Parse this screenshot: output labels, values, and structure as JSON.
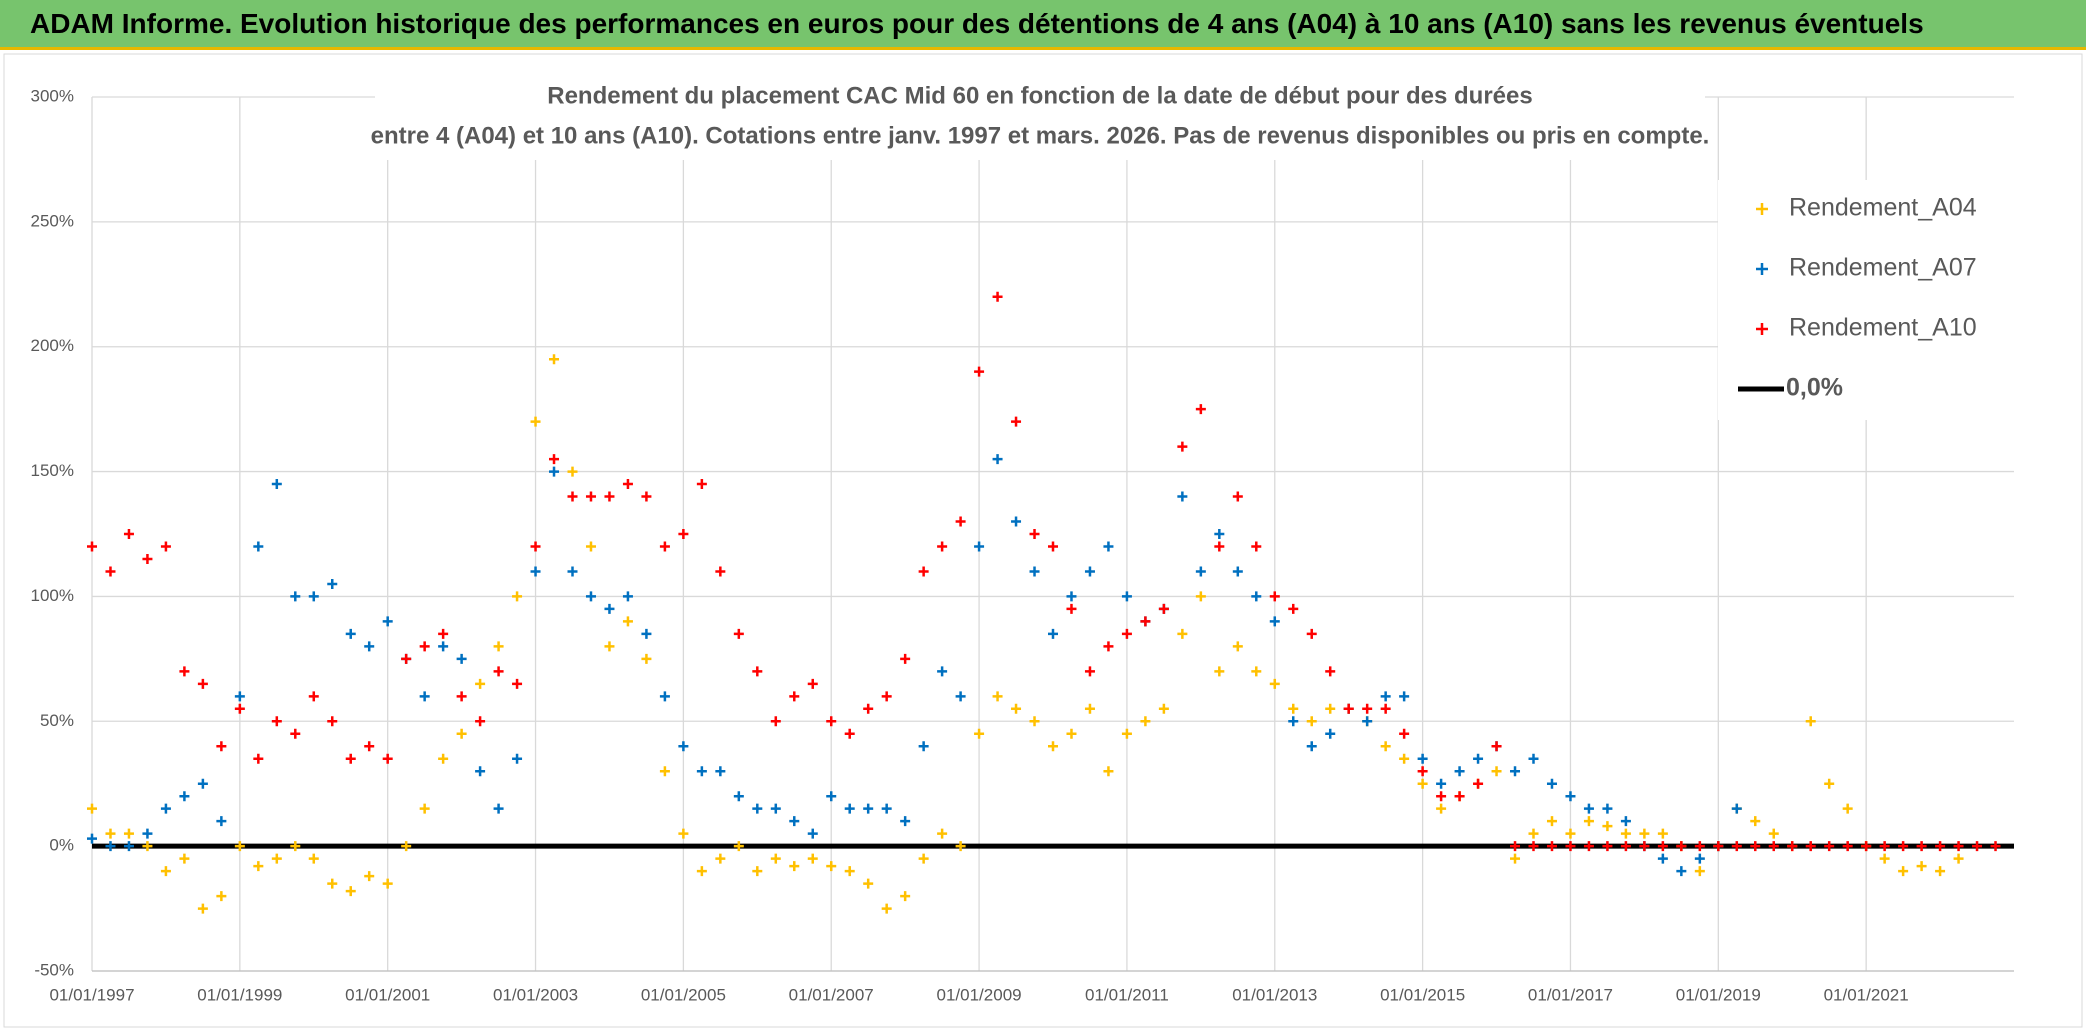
{
  "chart_data": {
    "type": "scatter",
    "title": "ADAM Informe. Evolution historique des performances en euros pour des détentions de 4 ans (A04) à 10 ans (A10) sans les revenus éventuels",
    "subtitle": [
      "Rendement du placement CAC Mid 60 en fonction de la date de début pour des durées",
      "entre 4 (A04) et 10 ans (A10). Cotations entre janv. 1997 et mars. 2026. Pas de revenus disponibles ou pris en compte."
    ],
    "xlim": [
      1997,
      2023
    ],
    "ylim": [
      -50,
      300
    ],
    "grid": true,
    "legend": "top-right",
    "xticks": [
      {
        "value": 1997,
        "label": "01/01/1997"
      },
      {
        "value": 1999,
        "label": "01/01/1999"
      },
      {
        "value": 2001,
        "label": "01/01/2001"
      },
      {
        "value": 2003,
        "label": "01/01/2003"
      },
      {
        "value": 2005,
        "label": "01/01/2005"
      },
      {
        "value": 2007,
        "label": "01/01/2007"
      },
      {
        "value": 2009,
        "label": "01/01/2009"
      },
      {
        "value": 2011,
        "label": "01/01/2011"
      },
      {
        "value": 2013,
        "label": "01/01/2013"
      },
      {
        "value": 2015,
        "label": "01/01/2015"
      },
      {
        "value": 2017,
        "label": "01/01/2017"
      },
      {
        "value": 2019,
        "label": "01/01/2019"
      },
      {
        "value": 2021,
        "label": "01/01/2021"
      }
    ],
    "yticks": [
      {
        "value": -50,
        "label": "-50%"
      },
      {
        "value": 0,
        "label": "0%"
      },
      {
        "value": 50,
        "label": "50%"
      },
      {
        "value": 100,
        "label": "100%"
      },
      {
        "value": 150,
        "label": "150%"
      },
      {
        "value": 200,
        "label": "200%"
      },
      {
        "value": 250,
        "label": "250%"
      },
      {
        "value": 300,
        "label": "300%"
      }
    ],
    "x": [
      1997,
      1997.25,
      1997.5,
      1997.75,
      1998,
      1998.25,
      1998.5,
      1998.75,
      1999,
      1999.25,
      1999.5,
      1999.75,
      2000,
      2000.25,
      2000.5,
      2000.75,
      2001,
      2001.25,
      2001.5,
      2001.75,
      2002,
      2002.25,
      2002.5,
      2002.75,
      2003,
      2003.25,
      2003.5,
      2003.75,
      2004,
      2004.25,
      2004.5,
      2004.75,
      2005,
      2005.25,
      2005.5,
      2005.75,
      2006,
      2006.25,
      2006.5,
      2006.75,
      2007,
      2007.25,
      2007.5,
      2007.75,
      2008,
      2008.25,
      2008.5,
      2008.75,
      2009,
      2009.25,
      2009.5,
      2009.75,
      2010,
      2010.25,
      2010.5,
      2010.75,
      2011,
      2011.25,
      2011.5,
      2011.75,
      2012,
      2012.25,
      2012.5,
      2012.75,
      2013,
      2013.25,
      2013.5,
      2013.75,
      2014,
      2014.25,
      2014.5,
      2014.75,
      2015,
      2015.25,
      2015.5,
      2015.75,
      2016,
      2016.25,
      2016.5,
      2016.75,
      2017,
      2017.25,
      2017.5,
      2017.75,
      2018,
      2018.25,
      2018.5,
      2018.75,
      2019,
      2019.25,
      2019.5,
      2019.75,
      2020,
      2020.25,
      2020.5,
      2020.75,
      2021,
      2021.25,
      2021.5,
      2021.75,
      2022,
      2022.25,
      2022.5,
      2022.75
    ],
    "series": [
      {
        "name": "Rendement_A04",
        "color": "#ffc000",
        "marker": "plus",
        "values": [
          15,
          5,
          5,
          0,
          -10,
          -5,
          -25,
          -20,
          0,
          -8,
          -5,
          0,
          -5,
          -15,
          -18,
          -12,
          -15,
          0,
          15,
          35,
          45,
          65,
          80,
          100,
          170,
          195,
          150,
          120,
          80,
          90,
          75,
          30,
          5,
          -10,
          -5,
          0,
          -10,
          -5,
          -8,
          -5,
          -8,
          -10,
          -15,
          -25,
          -20,
          -5,
          5,
          0,
          45,
          60,
          55,
          50,
          40,
          45,
          55,
          30,
          45,
          50,
          55,
          85,
          100,
          70,
          80,
          70,
          65,
          55,
          50,
          55,
          55,
          50,
          40,
          35,
          25,
          15,
          20,
          25,
          30,
          -5,
          5,
          10,
          5,
          10,
          8,
          5,
          5,
          5,
          0,
          -10,
          0,
          15,
          10,
          5,
          0,
          50,
          25,
          15,
          0,
          -5,
          -10,
          -8,
          -10,
          -5,
          null,
          null
        ]
      },
      {
        "name": "Rendement_A07",
        "color": "#0070c0",
        "marker": "plus",
        "values": [
          3,
          0,
          0,
          5,
          15,
          20,
          25,
          10,
          60,
          120,
          145,
          100,
          100,
          105,
          85,
          80,
          90,
          75,
          60,
          80,
          75,
          30,
          15,
          35,
          110,
          150,
          110,
          100,
          95,
          100,
          85,
          60,
          40,
          30,
          30,
          20,
          15,
          15,
          10,
          5,
          20,
          15,
          15,
          15,
          10,
          40,
          70,
          60,
          120,
          155,
          130,
          110,
          85,
          100,
          110,
          120,
          100,
          90,
          95,
          140,
          110,
          125,
          110,
          100,
          90,
          50,
          40,
          45,
          55,
          50,
          60,
          60,
          35,
          25,
          30,
          35,
          40,
          30,
          35,
          25,
          20,
          15,
          15,
          10,
          0,
          -5,
          -10,
          -5,
          0,
          15,
          null,
          null,
          null,
          null,
          null,
          null,
          null,
          null,
          null,
          null,
          null,
          null,
          null,
          null
        ]
      },
      {
        "name": "Rendement_A10",
        "color": "#ff0000",
        "marker": "plus",
        "values": [
          120,
          110,
          125,
          115,
          120,
          70,
          65,
          40,
          55,
          35,
          50,
          45,
          60,
          50,
          35,
          40,
          35,
          75,
          80,
          85,
          60,
          50,
          70,
          65,
          120,
          155,
          140,
          140,
          140,
          145,
          140,
          120,
          125,
          145,
          110,
          85,
          70,
          50,
          60,
          65,
          50,
          45,
          55,
          60,
          75,
          110,
          120,
          130,
          190,
          220,
          170,
          125,
          120,
          95,
          70,
          80,
          85,
          90,
          95,
          160,
          175,
          120,
          140,
          120,
          100,
          95,
          85,
          70,
          55,
          55,
          55,
          45,
          30,
          20,
          20,
          25,
          40,
          0,
          0,
          0,
          0,
          0,
          0,
          0,
          0,
          0,
          0,
          0,
          0,
          0,
          0,
          0,
          0,
          0,
          0,
          0,
          0,
          0,
          0,
          0,
          0,
          0,
          0,
          0
        ]
      },
      {
        "name": "0,0%",
        "color": "#000000",
        "marker": "line",
        "x": [
          1997,
          2023
        ],
        "values": [
          0,
          0
        ]
      }
    ]
  }
}
